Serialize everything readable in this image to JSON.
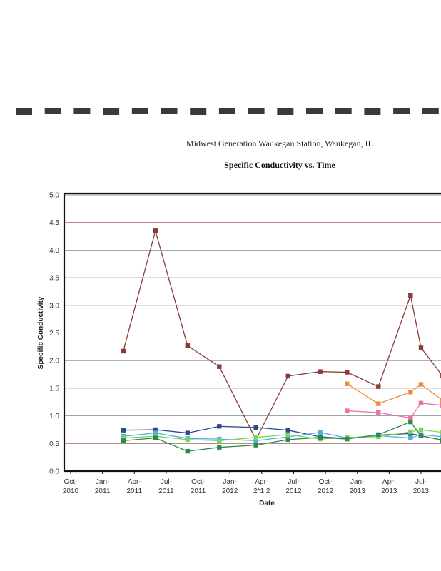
{
  "chart_data": {
    "type": "line",
    "title": "Midwest Generation Waukegan Station, Waukegan, IL",
    "subtitle": "Specific Conductivity vs. Time",
    "xlabel": "Date",
    "ylabel": "Specific Conductivity",
    "ylim": [
      0,
      5
    ],
    "yticks": [
      "0.0",
      "0.5",
      "1.0",
      "1.5",
      "2.0",
      "2.5",
      "3.0",
      "3.5",
      "4.0",
      "4.5",
      "5.0"
    ],
    "x_ticks": [
      {
        "l1": "Oct-",
        "l2": "2010"
      },
      {
        "l1": "Jan-",
        "l2": "2011"
      },
      {
        "l1": "Apr-",
        "l2": "2011"
      },
      {
        "l1": "Jul-",
        "l2": "2011"
      },
      {
        "l1": "Oct-",
        "l2": "2011"
      },
      {
        "l1": "Jan-",
        "l2": "2012"
      },
      {
        "l1": "Apr-",
        "l2": "2*1 2"
      },
      {
        "l1": "Jul-",
        "l2": "2012"
      },
      {
        "l1": "Oct-",
        "l2": "2012"
      },
      {
        "l1": "Jan-",
        "l2": "2013"
      },
      {
        "l1": "Apr-",
        "l2": "2013"
      },
      {
        "l1": "Jul-",
        "l2": "2013"
      }
    ],
    "grid": true,
    "series": [
      {
        "color": "#8b3a3a",
        "x": [
          "2011-03-01",
          "2011-06-01",
          "2011-09-01",
          "2011-12-01",
          "2012-03-15",
          "2012-06-15",
          "2012-09-15",
          "2012-12-01",
          "2013-03-01",
          "2013-06-01",
          "2013-07-01",
          "2013-09-01"
        ],
        "values": [
          2.17,
          4.35,
          2.27,
          1.89,
          0.57,
          1.72,
          1.8,
          1.79,
          1.53,
          3.18,
          2.23,
          1.72
        ]
      },
      {
        "color": "#f08a3c",
        "x": [
          "2012-12-01",
          "2013-03-01",
          "2013-06-01",
          "2013-07-01",
          "2013-09-01"
        ],
        "values": [
          1.58,
          1.22,
          1.43,
          1.57,
          1.28
        ]
      },
      {
        "color": "#ee6fa0",
        "x": [
          "2012-12-01",
          "2013-03-01",
          "2013-06-01",
          "2013-07-01",
          "2013-09-01"
        ],
        "values": [
          1.09,
          1.06,
          0.96,
          1.23,
          1.19
        ]
      },
      {
        "color": "#2e4a8a",
        "x": [
          "2011-03-01",
          "2011-06-01",
          "2011-09-01",
          "2011-12-01",
          "2012-03-15",
          "2012-06-15",
          "2012-09-15",
          "2012-12-01",
          "2013-03-01",
          "2013-06-01",
          "2013-07-01",
          "2013-09-01"
        ],
        "values": [
          0.74,
          0.75,
          0.69,
          0.81,
          0.79,
          0.74,
          0.62,
          0.59,
          0.65,
          0.68,
          0.64,
          0.56
        ]
      },
      {
        "color": "#4cb0e6",
        "x": [
          "2011-03-01",
          "2011-06-01",
          "2011-09-01",
          "2011-12-01",
          "2012-03-15",
          "2012-06-15",
          "2012-09-15",
          "2012-12-01",
          "2013-03-01",
          "2013-06-01",
          "2013-07-01",
          "2013-09-01"
        ],
        "values": [
          0.63,
          0.69,
          0.59,
          0.58,
          0.55,
          0.62,
          0.7,
          0.6,
          0.64,
          0.6,
          0.66,
          0.62
        ]
      },
      {
        "color": "#7fd35a",
        "x": [
          "2011-03-01",
          "2011-06-01",
          "2011-09-01",
          "2011-12-01",
          "2012-03-15",
          "2012-06-15",
          "2012-09-15",
          "2012-12-01",
          "2013-03-01",
          "2013-06-01",
          "2013-07-01",
          "2013-09-01"
        ],
        "values": [
          0.6,
          0.63,
          0.57,
          0.55,
          0.61,
          0.66,
          0.58,
          0.61,
          0.62,
          0.71,
          0.75,
          0.7
        ]
      },
      {
        "color": "#2f8a4a",
        "x": [
          "2011-03-01",
          "2011-06-01",
          "2011-09-01",
          "2011-12-01",
          "2012-03-15",
          "2012-06-15",
          "2012-09-15",
          "2012-12-01",
          "2013-03-01",
          "2013-06-01",
          "2013-07-01",
          "2013-09-01"
        ],
        "values": [
          0.55,
          0.6,
          0.36,
          0.43,
          0.47,
          0.57,
          0.61,
          0.58,
          0.66,
          0.89,
          0.64,
          0.56
        ]
      }
    ]
  }
}
